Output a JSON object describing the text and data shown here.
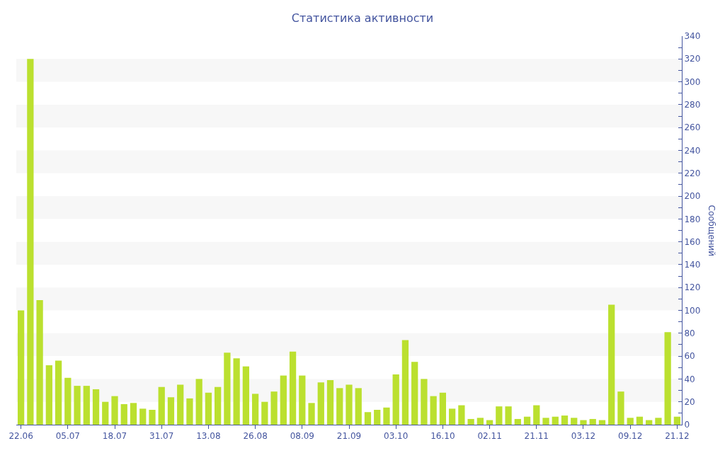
{
  "chart_data": {
    "type": "bar",
    "title": "Статистика активности",
    "ylabel": "Сообщений",
    "categories": [
      "22.06",
      null,
      null,
      null,
      null,
      "05.07",
      null,
      null,
      null,
      null,
      "18.07",
      null,
      null,
      null,
      null,
      "31.07",
      null,
      null,
      null,
      null,
      "13.08",
      null,
      null,
      null,
      null,
      "26.08",
      null,
      null,
      null,
      null,
      "08.09",
      null,
      null,
      null,
      null,
      "21.09",
      null,
      null,
      null,
      null,
      "03.10",
      null,
      null,
      null,
      null,
      "16.10",
      null,
      null,
      null,
      null,
      "02.11",
      null,
      null,
      null,
      null,
      "21.11",
      null,
      null,
      null,
      null,
      "03.12",
      null,
      null,
      null,
      null,
      "09.12",
      null,
      null,
      null,
      null,
      "21.12"
    ],
    "values": [
      100,
      320,
      109,
      52,
      56,
      41,
      34,
      34,
      31,
      20,
      25,
      18,
      19,
      14,
      13,
      33,
      24,
      35,
      23,
      40,
      28,
      33,
      63,
      58,
      51,
      27,
      20,
      29,
      43,
      64,
      43,
      19,
      37,
      39,
      32,
      35,
      32,
      11,
      13,
      15,
      44,
      74,
      55,
      40,
      25,
      28,
      14,
      17,
      5,
      6,
      4,
      16,
      16,
      5,
      7,
      17,
      6,
      7,
      8,
      6,
      4,
      5,
      4,
      105,
      29,
      6,
      7,
      4,
      6,
      81,
      7
    ],
    "color": "#bbe02f",
    "ylim": [
      0,
      340
    ],
    "yticks": [
      0,
      20,
      40,
      60,
      80,
      100,
      120,
      140,
      160,
      180,
      200,
      220,
      240,
      260,
      280,
      300,
      320,
      340
    ],
    "grid": false,
    "bands": [
      {
        "axis": "y",
        "from": 20,
        "to": 40,
        "color": "#f7f7f7"
      },
      {
        "axis": "y",
        "from": 60,
        "to": 80,
        "color": "#f7f7f7"
      },
      {
        "axis": "y",
        "from": 100,
        "to": 120,
        "color": "#f7f7f7"
      },
      {
        "axis": "y",
        "from": 140,
        "to": 160,
        "color": "#f7f7f7"
      },
      {
        "axis": "y",
        "from": 180,
        "to": 200,
        "color": "#f7f7f7"
      },
      {
        "axis": "y",
        "from": 220,
        "to": 240,
        "color": "#f7f7f7"
      },
      {
        "axis": "y",
        "from": 260,
        "to": 280,
        "color": "#f7f7f7"
      },
      {
        "axis": "y",
        "from": 300,
        "to": 320,
        "color": "#f7f7f7"
      }
    ]
  }
}
